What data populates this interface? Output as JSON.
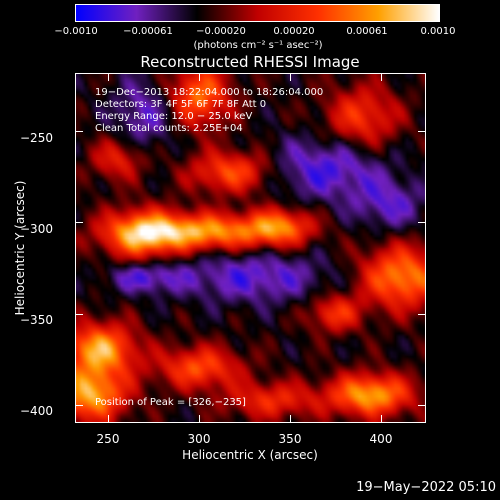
{
  "colorbar": {
    "ticks": [
      "−0.0010",
      "−0.00061",
      "−0.00020",
      "0.00020",
      "0.00061",
      "0.0010"
    ],
    "unit": "(photons cm⁻² s⁻¹ asec⁻²)",
    "min": -0.001,
    "max": 0.001
  },
  "annotations": {
    "time_range": "19−Dec−2013 18:22:04.000 to 18:26:04.000",
    "detectors": "Detectors: 3F 4F 5F 6F 7F 8F  Att 0",
    "energy_range": "Energy Range: 12.0 − 25.0 keV",
    "method": "Clean     Total counts: 2.25E+04",
    "peak": "Position of Peak = [326,−235]"
  },
  "timestamp": "19−May−2022 05:10",
  "chart_data": {
    "type": "heatmap",
    "title": "Reconstructed RHESSI Image",
    "xlabel": "Heliocentric X (arcsec)",
    "ylabel": "Heliocentric Y (arcsec)",
    "xlim": [
      232,
      425
    ],
    "ylim": [
      -410,
      -218
    ],
    "xticks": [
      250,
      300,
      350,
      400
    ],
    "yticks": [
      -250,
      -300,
      -350,
      -400
    ],
    "xtick_labels": [
      "250",
      "300",
      "350",
      "400"
    ],
    "ytick_labels": [
      "−250",
      "−300",
      "−350",
      "−400"
    ],
    "colormap": [
      "#0000ff",
      "#7020c0",
      "#000000",
      "#c00000",
      "#ff3000",
      "#ffa000",
      "#ffffff"
    ],
    "peak_position": [
      326,
      -235
    ],
    "blobs": [
      {
        "x": 300,
        "y": -305,
        "sx": 30,
        "sy": 7,
        "v": 1.0
      },
      {
        "x": 345,
        "y": -302,
        "sx": 12,
        "sy": 7,
        "v": 0.7
      },
      {
        "x": 268,
        "y": -307,
        "sx": 14,
        "sy": 10,
        "v": 0.75
      },
      {
        "x": 300,
        "y": -230,
        "sx": 12,
        "sy": 12,
        "v": 0.8
      },
      {
        "x": 318,
        "y": -272,
        "sx": 16,
        "sy": 8,
        "v": 0.7
      },
      {
        "x": 255,
        "y": -265,
        "sx": 10,
        "sy": 8,
        "v": 0.5
      },
      {
        "x": 390,
        "y": -242,
        "sx": 14,
        "sy": 12,
        "v": 0.6
      },
      {
        "x": 412,
        "y": -330,
        "sx": 16,
        "sy": 12,
        "v": 0.9
      },
      {
        "x": 375,
        "y": -350,
        "sx": 10,
        "sy": 7,
        "v": 0.6
      },
      {
        "x": 245,
        "y": -370,
        "sx": 14,
        "sy": 10,
        "v": 1.0
      },
      {
        "x": 240,
        "y": -395,
        "sx": 14,
        "sy": 10,
        "v": 1.0
      },
      {
        "x": 300,
        "y": -380,
        "sx": 16,
        "sy": 8,
        "v": 0.7
      },
      {
        "x": 395,
        "y": -395,
        "sx": 16,
        "sy": 8,
        "v": 1.0
      },
      {
        "x": 340,
        "y": -398,
        "sx": 18,
        "sy": 7,
        "v": 0.55
      },
      {
        "x": 270,
        "y": -330,
        "sx": 14,
        "sy": 6,
        "v": -0.45
      },
      {
        "x": 330,
        "y": -330,
        "sx": 30,
        "sy": 10,
        "v": -0.45
      },
      {
        "x": 270,
        "y": -240,
        "sx": 12,
        "sy": 14,
        "v": -0.4
      },
      {
        "x": 370,
        "y": -270,
        "sx": 22,
        "sy": 12,
        "v": -0.5
      },
      {
        "x": 405,
        "y": -290,
        "sx": 14,
        "sy": 10,
        "v": -0.4
      }
    ]
  }
}
